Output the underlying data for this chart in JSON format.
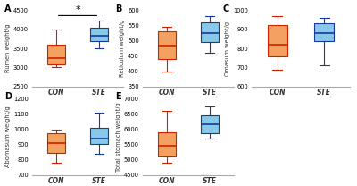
{
  "panels": [
    {
      "label": "A",
      "ylabel": "Rumen weight/g",
      "ylim": [
        2500,
        4500
      ],
      "yticks": [
        2500,
        3000,
        3500,
        4000,
        4500
      ],
      "sig_line": true,
      "sig_text": "*",
      "CON": {
        "whislo": 3000,
        "q1": 3080,
        "med": 3250,
        "q3": 3600,
        "whishi": 4000
      },
      "STE": {
        "whislo": 3500,
        "q1": 3700,
        "med": 3820,
        "q3": 4050,
        "whishi": 4220
      }
    },
    {
      "label": "B",
      "ylabel": "Reticulum weight/g",
      "ylim": [
        350,
        600
      ],
      "yticks": [
        350,
        400,
        450,
        500,
        550,
        600
      ],
      "sig_line": false,
      "sig_text": "",
      "CON": {
        "whislo": 400,
        "q1": 440,
        "med": 485,
        "q3": 530,
        "whishi": 545
      },
      "STE": {
        "whislo": 460,
        "q1": 495,
        "med": 525,
        "q3": 560,
        "whishi": 580
      }
    },
    {
      "label": "C",
      "ylabel": "Omasum weight/g",
      "ylim": [
        600,
        1000
      ],
      "yticks": [
        600,
        700,
        800,
        900,
        1000
      ],
      "sig_line": false,
      "sig_text": "",
      "CON": {
        "whislo": 690,
        "q1": 760,
        "med": 820,
        "q3": 920,
        "whishi": 970
      },
      "STE": {
        "whislo": 710,
        "q1": 840,
        "med": 880,
        "q3": 930,
        "whishi": 960
      }
    },
    {
      "label": "D",
      "ylabel": "Abomasum weight/g",
      "ylim": [
        700,
        1200
      ],
      "yticks": [
        700,
        800,
        900,
        1000,
        1100,
        1200
      ],
      "sig_line": false,
      "sig_text": "",
      "CON": {
        "whislo": 780,
        "q1": 845,
        "med": 910,
        "q3": 970,
        "whishi": 995
      },
      "STE": {
        "whislo": 840,
        "q1": 900,
        "med": 935,
        "q3": 1010,
        "whishi": 1110
      }
    },
    {
      "label": "E",
      "ylabel": "Total stomach weight/g",
      "ylim": [
        4500,
        7000
      ],
      "yticks": [
        4500,
        5000,
        5500,
        6000,
        6500,
        7000
      ],
      "sig_line": false,
      "sig_text": "",
      "CON": {
        "whislo": 4900,
        "q1": 5100,
        "med": 5450,
        "q3": 5900,
        "whishi": 6600
      },
      "STE": {
        "whislo": 5700,
        "q1": 5870,
        "med": 6150,
        "q3": 6450,
        "whishi": 6750
      }
    }
  ],
  "con_color": "#F4A060",
  "con_edge": "#CC2200",
  "ste_color": "#88C8E8",
  "ste_edge": "#1a3a9a",
  "xtick_labels": [
    "CON",
    "STE"
  ],
  "background": "#ffffff"
}
